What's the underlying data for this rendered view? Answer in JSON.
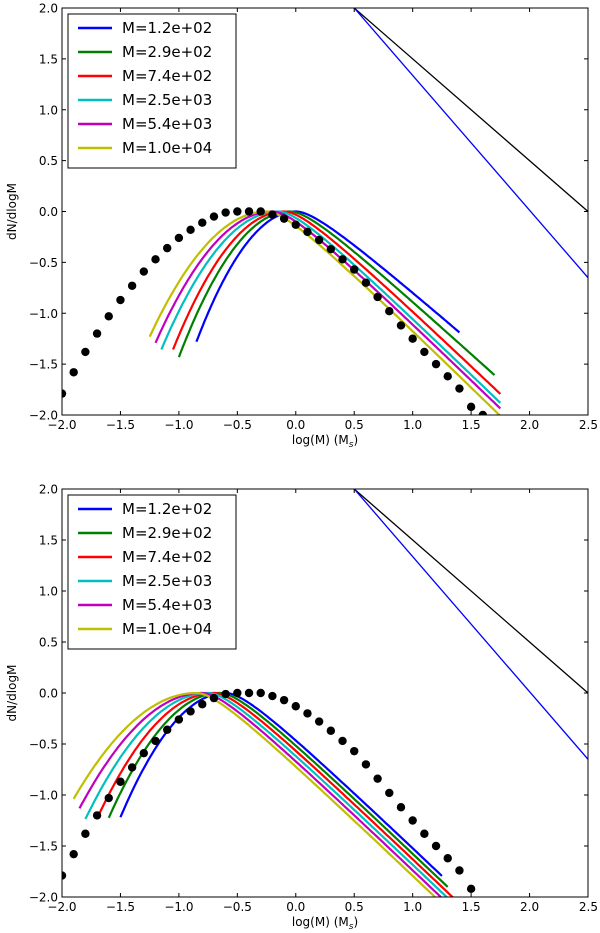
{
  "chart_data": [
    {
      "type": "line",
      "panel": "top",
      "xlabel": "log(M) (M_s)",
      "xlabel_main": "log(M) (M",
      "xlabel_sub": "s",
      "xlabel_end": ")",
      "ylabel": "dN/dlogM",
      "xlim": [
        -2.0,
        2.5
      ],
      "ylim": [
        -2.0,
        2.0
      ],
      "xticks": [
        -2.0,
        -1.5,
        -1.0,
        -0.5,
        0.0,
        0.5,
        1.0,
        1.5,
        2.0,
        2.5
      ],
      "xtick_labels": [
        "−2.0",
        "−1.5",
        "−1.0",
        "−0.5",
        "0.0",
        "0.5",
        "1.0",
        "1.5",
        "2.0",
        "2.5"
      ],
      "yticks": [
        2.0,
        1.5,
        1.0,
        0.5,
        0.0,
        -0.5,
        -1.0,
        -1.5,
        -2.0
      ],
      "ytick_labels": [
        "2.0",
        "1.5",
        "1.0",
        "0.5",
        "0.0",
        "−0.5",
        "−1.0",
        "−1.5",
        "−2.0"
      ],
      "legend_position": "top-left",
      "series": [
        {
          "name": "M=1.2e+02",
          "color": "#0000ff",
          "peak": 0.0,
          "wl": 0.35,
          "xmin": -0.85,
          "xmax": 1.4,
          "right_slope": -1.0
        },
        {
          "name": "M=2.9e+02",
          "color": "#008000",
          "peak": -0.05,
          "wl": 0.37,
          "xmin": -1.0,
          "xmax": 1.7,
          "right_slope": -1.05
        },
        {
          "name": "M=7.4e+02",
          "color": "#ff0000",
          "peak": -0.1,
          "wl": 0.38,
          "xmin": -1.05,
          "xmax": 1.75,
          "right_slope": -1.1
        },
        {
          "name": "M=2.5e+03",
          "color": "#00bfbf",
          "peak": -0.15,
          "wl": 0.4,
          "xmin": -1.15,
          "xmax": 1.75,
          "right_slope": -1.12
        },
        {
          "name": "M=5.4e+03",
          "color": "#bf00bf",
          "peak": -0.2,
          "wl": 0.41,
          "xmin": -1.2,
          "xmax": 1.75,
          "right_slope": -1.12
        },
        {
          "name": "M=1.0e+04",
          "color": "#bfbf00",
          "peak": -0.25,
          "wl": 0.42,
          "xmin": -1.25,
          "xmax": 1.75,
          "right_slope": -1.13
        }
      ],
      "reference_lines": [
        {
          "name": "black-line",
          "color": "#000000",
          "x": [
            0.5,
            2.5
          ],
          "y": [
            2.0,
            0.0
          ]
        },
        {
          "name": "blue-line",
          "color": "#0000ff",
          "x": [
            0.5,
            2.5
          ],
          "y": [
            2.0,
            -0.65
          ]
        }
      ],
      "dots": {
        "color": "#000000",
        "x": [
          -2.0,
          -1.9,
          -1.8,
          -1.7,
          -1.6,
          -1.5,
          -1.4,
          -1.3,
          -1.2,
          -1.1,
          -1.0,
          -0.9,
          -0.8,
          -0.7,
          -0.6,
          -0.5,
          -0.4,
          -0.3,
          -0.2,
          -0.1,
          0.0,
          0.1,
          0.2,
          0.3,
          0.4,
          0.5,
          0.6,
          0.7,
          0.8,
          0.9,
          1.0,
          1.1,
          1.2,
          1.3,
          1.4,
          1.5,
          1.6
        ],
        "y": [
          -1.79,
          -1.58,
          -1.38,
          -1.2,
          -1.03,
          -0.87,
          -0.73,
          -0.59,
          -0.47,
          -0.36,
          -0.26,
          -0.18,
          -0.11,
          -0.05,
          -0.01,
          0.0,
          0.0,
          0.0,
          -0.03,
          -0.07,
          -0.13,
          -0.2,
          -0.28,
          -0.37,
          -0.47,
          -0.57,
          -0.7,
          -0.84,
          -0.98,
          -1.12,
          -1.25,
          -1.38,
          -1.5,
          -1.62,
          -1.74,
          -1.92,
          -2.0
        ]
      }
    },
    {
      "type": "line",
      "panel": "bottom",
      "xlabel": "log(M) (M_s)",
      "xlabel_main": "log(M) (M",
      "xlabel_sub": "s",
      "xlabel_end": ")",
      "ylabel": "dN/dlogM",
      "xlim": [
        -2.0,
        2.5
      ],
      "ylim": [
        -2.0,
        2.0
      ],
      "xticks": [
        -2.0,
        -1.5,
        -1.0,
        -0.5,
        0.0,
        0.5,
        1.0,
        1.5,
        2.0,
        2.5
      ],
      "xtick_labels": [
        "−2.0",
        "−1.5",
        "−1.0",
        "−0.5",
        "0.0",
        "0.5",
        "1.0",
        "1.5",
        "2.0",
        "2.5"
      ],
      "yticks": [
        2.0,
        1.5,
        1.0,
        0.5,
        0.0,
        -0.5,
        -1.0,
        -1.5,
        -2.0
      ],
      "ytick_labels": [
        "2.0",
        "1.5",
        "1.0",
        "0.5",
        "0.0",
        "−0.5",
        "−1.0",
        "−1.5",
        "−2.0"
      ],
      "legend_position": "top-left",
      "series": [
        {
          "name": "M=1.2e+02",
          "color": "#0000ff",
          "peak": -0.6,
          "wl": 0.38,
          "xmin": -1.5,
          "xmax": 1.25,
          "right_slope": -1.1
        },
        {
          "name": "M=2.9e+02",
          "color": "#008000",
          "peak": -0.65,
          "wl": 0.4,
          "xmin": -1.6,
          "xmax": 1.3,
          "right_slope": -1.1
        },
        {
          "name": "M=7.4e+02",
          "color": "#ff0000",
          "peak": -0.7,
          "wl": 0.42,
          "xmin": -1.7,
          "xmax": 1.35,
          "right_slope": -1.1
        },
        {
          "name": "M=2.5e+03",
          "color": "#00bfbf",
          "peak": -0.75,
          "wl": 0.44,
          "xmin": -1.8,
          "xmax": 1.4,
          "right_slope": -1.1
        },
        {
          "name": "M=5.4e+03",
          "color": "#bf00bf",
          "peak": -0.8,
          "wl": 0.46,
          "xmin": -1.85,
          "xmax": 1.45,
          "right_slope": -1.1
        },
        {
          "name": "M=1.0e+04",
          "color": "#bfbf00",
          "peak": -0.85,
          "wl": 0.48,
          "xmin": -1.9,
          "xmax": 1.45,
          "right_slope": -1.1
        }
      ],
      "reference_lines": [
        {
          "name": "black-line",
          "color": "#000000",
          "x": [
            0.5,
            2.5
          ],
          "y": [
            2.0,
            0.0
          ]
        },
        {
          "name": "blue-line",
          "color": "#0000ff",
          "x": [
            0.5,
            2.5
          ],
          "y": [
            2.0,
            -0.65
          ]
        }
      ],
      "dots": {
        "color": "#000000",
        "x": [
          -2.0,
          -1.9,
          -1.8,
          -1.7,
          -1.6,
          -1.5,
          -1.4,
          -1.3,
          -1.2,
          -1.1,
          -1.0,
          -0.9,
          -0.8,
          -0.7,
          -0.6,
          -0.5,
          -0.4,
          -0.3,
          -0.2,
          -0.1,
          0.0,
          0.1,
          0.2,
          0.3,
          0.4,
          0.5,
          0.6,
          0.7,
          0.8,
          0.9,
          1.0,
          1.1,
          1.2,
          1.3,
          1.4,
          1.5
        ],
        "y": [
          -1.79,
          -1.58,
          -1.38,
          -1.2,
          -1.03,
          -0.87,
          -0.73,
          -0.59,
          -0.47,
          -0.36,
          -0.26,
          -0.18,
          -0.11,
          -0.05,
          -0.01,
          0.0,
          0.0,
          0.0,
          -0.03,
          -0.07,
          -0.13,
          -0.2,
          -0.28,
          -0.37,
          -0.47,
          -0.57,
          -0.7,
          -0.84,
          -0.98,
          -1.12,
          -1.25,
          -1.38,
          -1.5,
          -1.62,
          -1.74,
          -1.92
        ]
      }
    }
  ]
}
